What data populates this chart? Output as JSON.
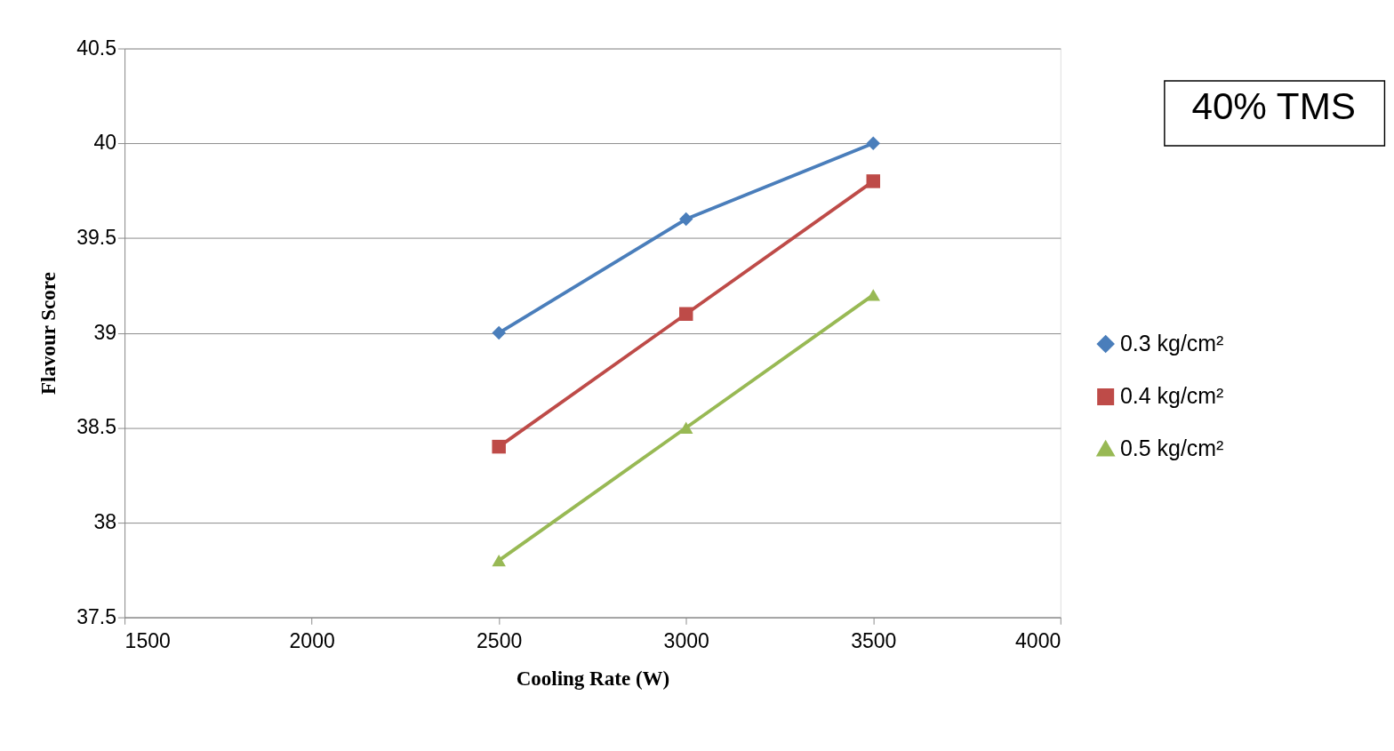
{
  "chart_data": {
    "type": "line",
    "xlabel": "Cooling Rate (W)",
    "ylabel": "Flavour Score",
    "annotations": [
      "40% TMS"
    ],
    "x": [
      2500,
      3000,
      3500
    ],
    "series": [
      {
        "name": "0.3 kg/cm²",
        "color": "#4a7ebb",
        "marker": "diamond",
        "values": [
          39.0,
          39.6,
          40.0
        ]
      },
      {
        "name": "0.4 kg/cm²",
        "color": "#be4b48",
        "marker": "square",
        "values": [
          38.4,
          39.1,
          39.8
        ]
      },
      {
        "name": "0.5 kg/cm²",
        "color": "#98b954",
        "marker": "triangle",
        "values": [
          37.8,
          38.5,
          39.2
        ]
      }
    ],
    "xlim": [
      1500,
      4000
    ],
    "xticks": [
      1500,
      2000,
      2500,
      3000,
      3500,
      4000
    ],
    "ylim": [
      37.5,
      40.5
    ],
    "yticks": [
      37.5,
      38,
      38.5,
      39,
      39.5,
      40,
      40.5
    ],
    "grid": "y",
    "legend": "right",
    "line_style": "solid"
  }
}
